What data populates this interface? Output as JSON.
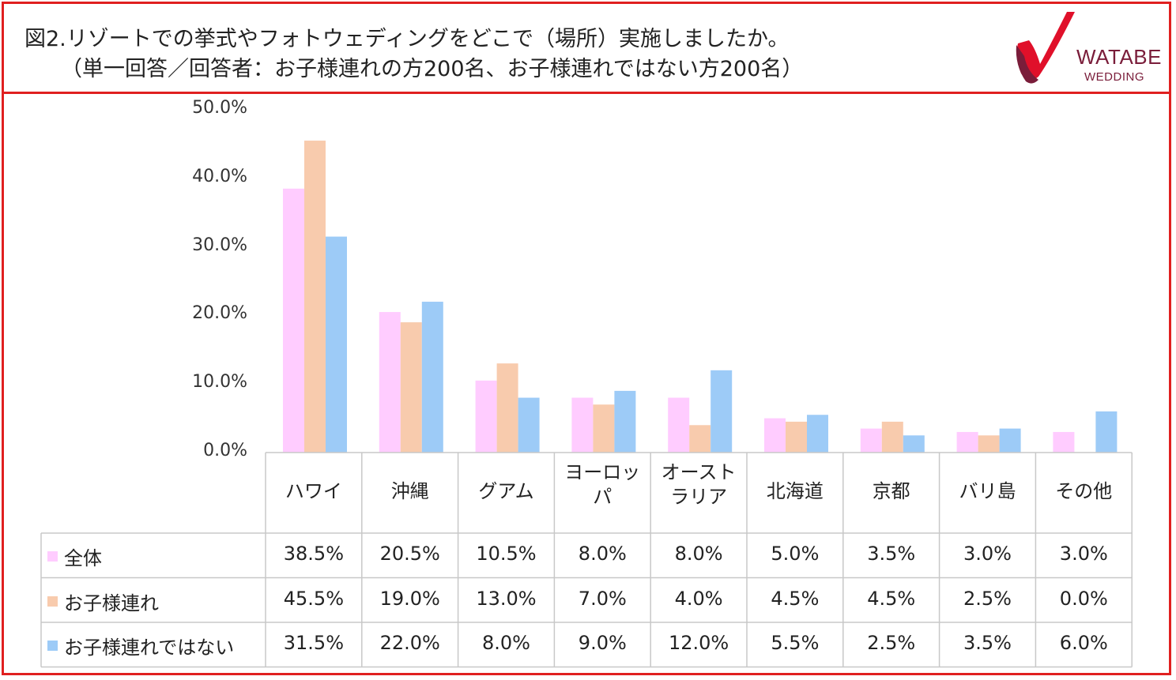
{
  "header": {
    "title_line1": "図2.リゾートでの挙式やフォトウェディングをどこで（場所）実施しましたか。",
    "title_line2": "（単一回答／回答者：お子様連れの方200名、お子様連れではない方200名）",
    "logo_text1": "WATABE",
    "logo_text2": "WEDDING",
    "logo_color": "#7a1d3a",
    "logo_red": "#e0102a"
  },
  "chart_data": {
    "type": "bar",
    "ylim": [
      0,
      50
    ],
    "yticks": [
      "0.0%",
      "10.0%",
      "20.0%",
      "30.0%",
      "40.0%",
      "50.0%"
    ],
    "categories": [
      "ハワイ",
      "沖縄",
      "グアム",
      "ヨーロッパ",
      "オーストラリア",
      "北海道",
      "京都",
      "バリ島",
      "その他"
    ],
    "category_lines": [
      [
        "ハワイ"
      ],
      [
        "沖縄"
      ],
      [
        "グアム"
      ],
      [
        "ヨーロッ",
        "パ"
      ],
      [
        "オースト",
        "ラリア"
      ],
      [
        "北海道"
      ],
      [
        "京都"
      ],
      [
        "バリ島"
      ],
      [
        "その他"
      ]
    ],
    "series": [
      {
        "name": "全体",
        "color": "#ffccff",
        "values": [
          38.5,
          20.5,
          10.5,
          8.0,
          8.0,
          5.0,
          3.5,
          3.0,
          3.0
        ],
        "labels": [
          "38.5%",
          "20.5%",
          "10.5%",
          "8.0%",
          "8.0%",
          "5.0%",
          "3.5%",
          "3.0%",
          "3.0%"
        ]
      },
      {
        "name": "お子様連れ",
        "color": "#f8cbad",
        "values": [
          45.5,
          19.0,
          13.0,
          7.0,
          4.0,
          4.5,
          4.5,
          2.5,
          0.0
        ],
        "labels": [
          "45.5%",
          "19.0%",
          "13.0%",
          "7.0%",
          "4.0%",
          "4.5%",
          "4.5%",
          "2.5%",
          "0.0%"
        ]
      },
      {
        "name": "お子様連れではない",
        "color": "#9dcbf7",
        "values": [
          31.5,
          22.0,
          8.0,
          9.0,
          12.0,
          5.5,
          2.5,
          3.5,
          6.0
        ],
        "labels": [
          "31.5%",
          "22.0%",
          "8.0%",
          "9.0%",
          "12.0%",
          "5.5%",
          "2.5%",
          "3.5%",
          "6.0%"
        ]
      }
    ]
  }
}
